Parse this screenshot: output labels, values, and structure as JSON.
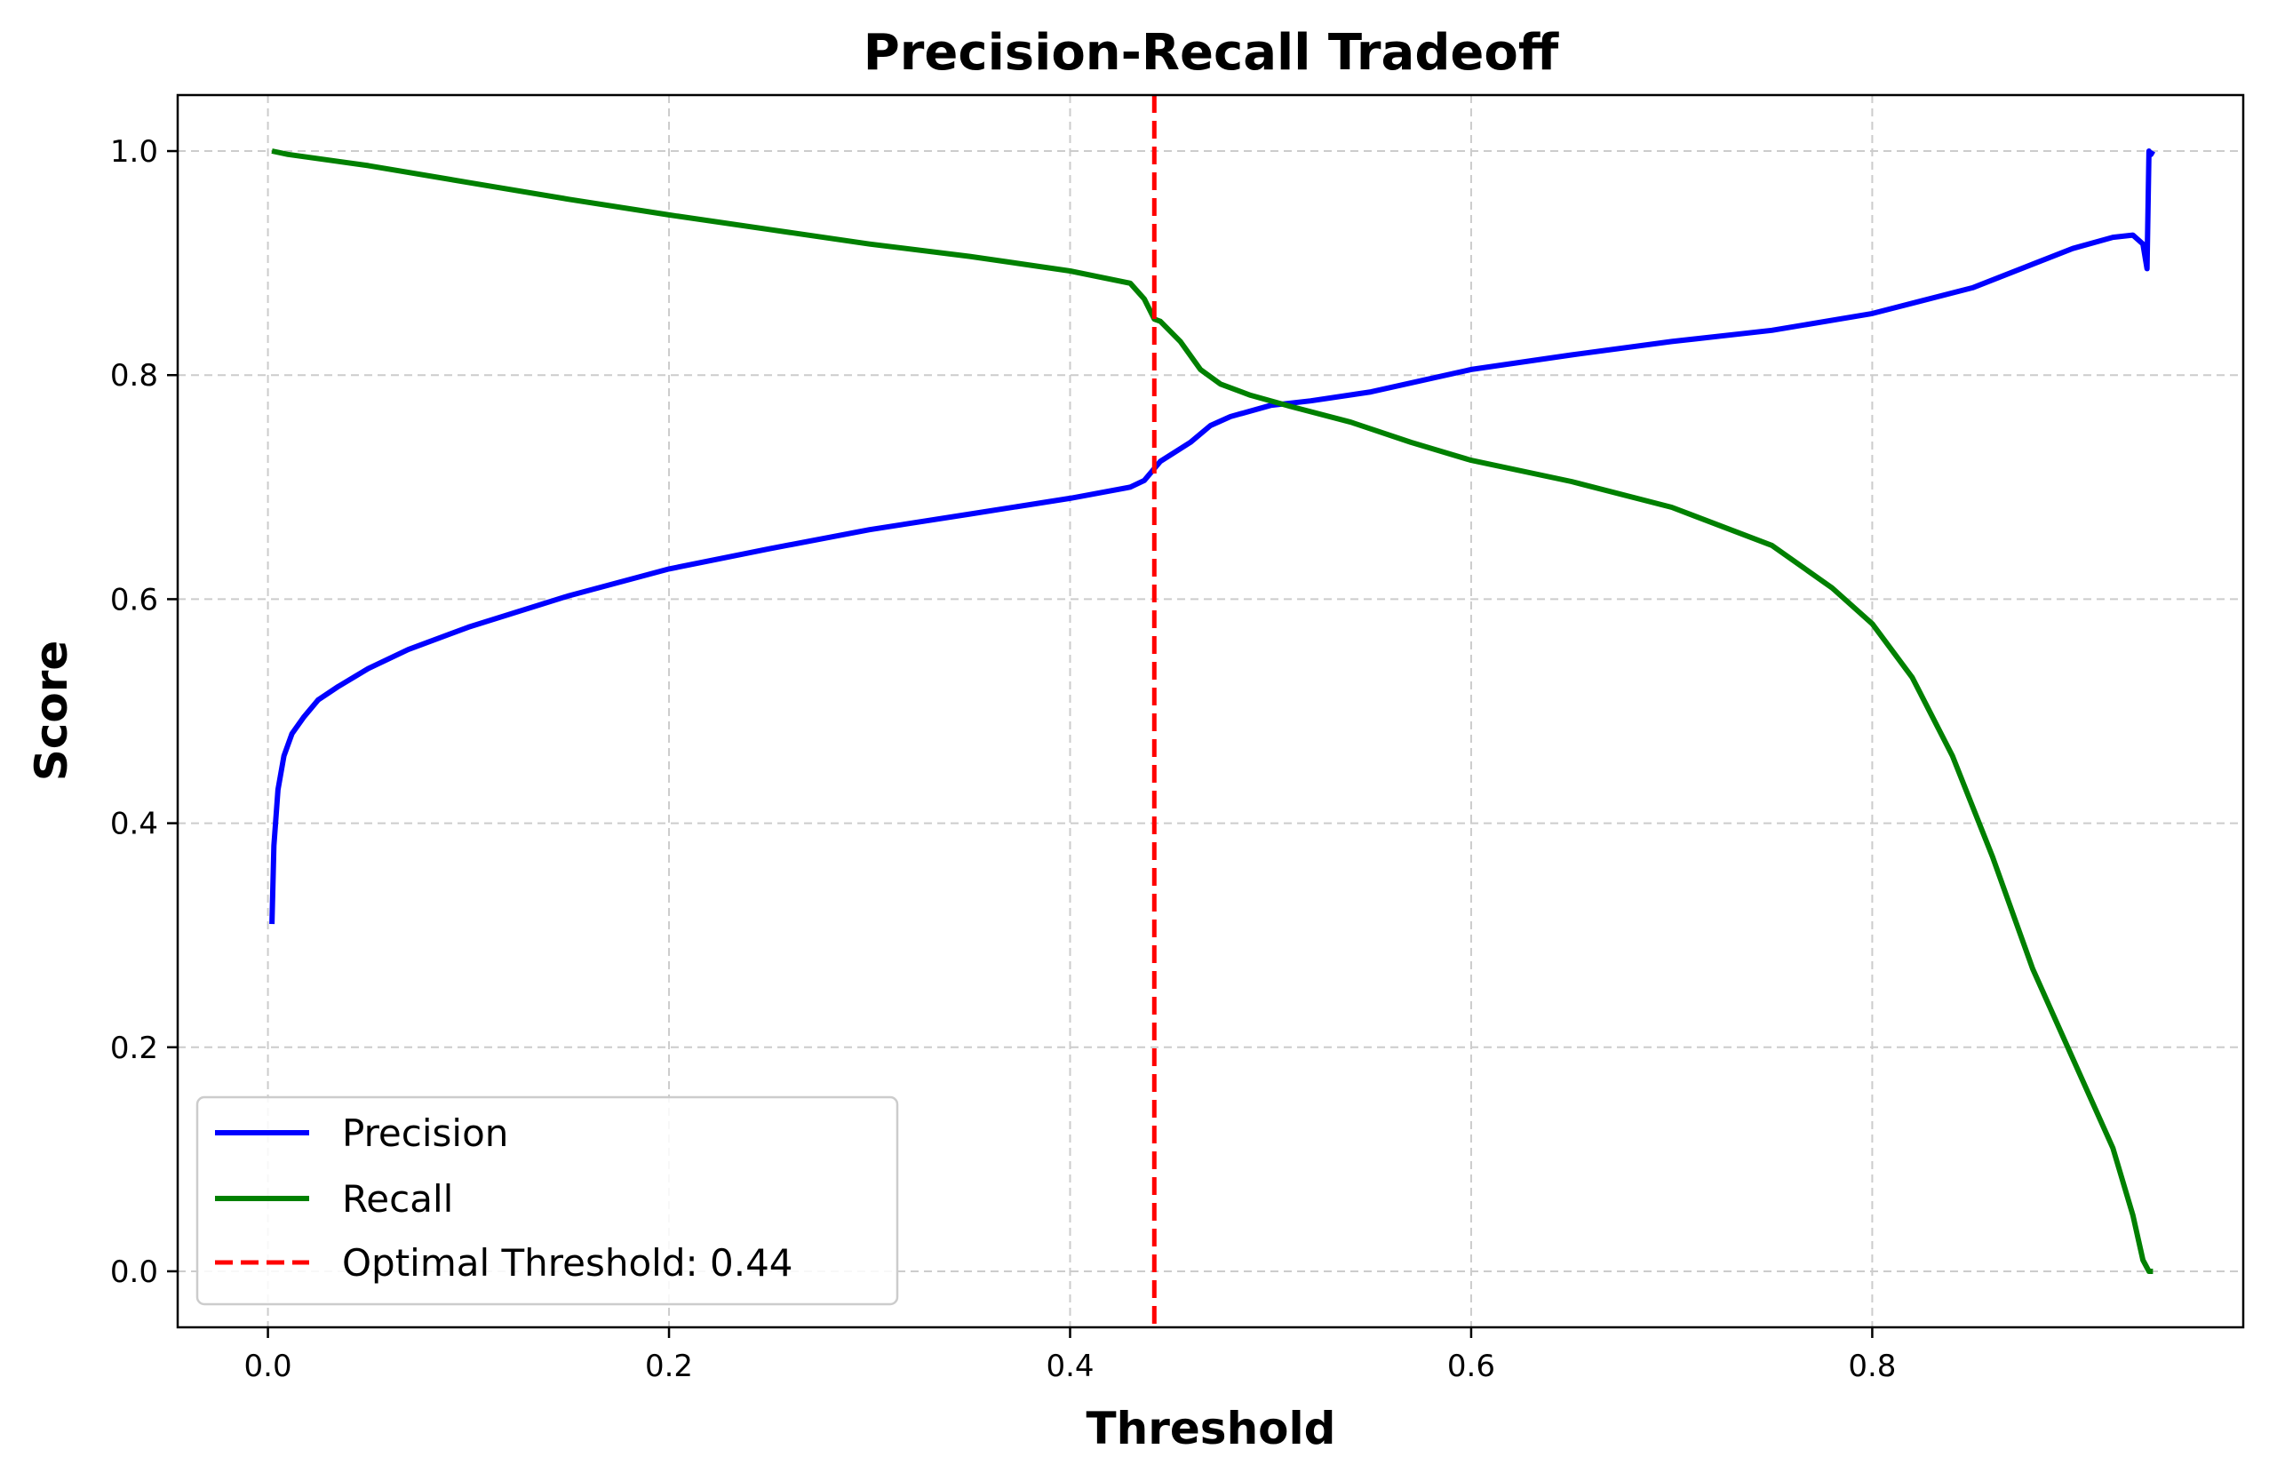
{
  "chart_data": {
    "type": "line",
    "title": "Precision-Recall Tradeoff",
    "xlabel": "Threshold",
    "ylabel": "Score",
    "xlim": [
      -0.045,
      0.985
    ],
    "ylim": [
      -0.05,
      1.05
    ],
    "xticks": [
      0.0,
      0.2,
      0.4,
      0.6,
      0.8
    ],
    "yticks": [
      0.0,
      0.2,
      0.4,
      0.6,
      0.8,
      1.0
    ],
    "xtick_labels": [
      "0.0",
      "0.2",
      "0.4",
      "0.6",
      "0.8"
    ],
    "ytick_labels": [
      "0.0",
      "0.2",
      "0.4",
      "0.6",
      "0.8",
      "1.0"
    ],
    "grid": true,
    "legend_position": "lower-left",
    "series": [
      {
        "name": "Precision",
        "color": "#0000ff",
        "style": "solid",
        "x": [
          0.002,
          0.003,
          0.005,
          0.008,
          0.012,
          0.018,
          0.025,
          0.035,
          0.05,
          0.07,
          0.1,
          0.15,
          0.2,
          0.25,
          0.3,
          0.35,
          0.4,
          0.43,
          0.437,
          0.445,
          0.46,
          0.47,
          0.48,
          0.5,
          0.52,
          0.55,
          0.6,
          0.65,
          0.7,
          0.75,
          0.8,
          0.85,
          0.9,
          0.92,
          0.93,
          0.935,
          0.937,
          0.938,
          0.939,
          0.94
        ],
        "values": [
          0.31,
          0.38,
          0.43,
          0.46,
          0.48,
          0.495,
          0.51,
          0.522,
          0.538,
          0.555,
          0.575,
          0.603,
          0.627,
          0.645,
          0.662,
          0.676,
          0.69,
          0.7,
          0.706,
          0.723,
          0.74,
          0.755,
          0.763,
          0.773,
          0.777,
          0.785,
          0.805,
          0.818,
          0.83,
          0.84,
          0.855,
          0.878,
          0.913,
          0.923,
          0.925,
          0.917,
          0.895,
          1.0,
          0.997,
          1.0
        ]
      },
      {
        "name": "Recall",
        "color": "#008000",
        "style": "solid",
        "x": [
          0.002,
          0.01,
          0.05,
          0.1,
          0.15,
          0.2,
          0.25,
          0.3,
          0.35,
          0.4,
          0.43,
          0.437,
          0.442,
          0.445,
          0.455,
          0.465,
          0.475,
          0.49,
          0.51,
          0.54,
          0.57,
          0.6,
          0.65,
          0.7,
          0.75,
          0.78,
          0.8,
          0.82,
          0.84,
          0.86,
          0.87,
          0.88,
          0.9,
          0.92,
          0.93,
          0.935,
          0.938,
          0.94
        ],
        "values": [
          1.0,
          0.997,
          0.987,
          0.972,
          0.957,
          0.943,
          0.93,
          0.917,
          0.906,
          0.893,
          0.882,
          0.868,
          0.85,
          0.848,
          0.83,
          0.805,
          0.792,
          0.782,
          0.772,
          0.758,
          0.74,
          0.724,
          0.705,
          0.682,
          0.648,
          0.61,
          0.578,
          0.53,
          0.46,
          0.37,
          0.32,
          0.27,
          0.19,
          0.11,
          0.05,
          0.01,
          0.0,
          0.0
        ]
      }
    ],
    "threshold_line": {
      "label": "Optimal Threshold: 0.44",
      "value": 0.442,
      "color": "#ff0000",
      "style": "dashed"
    }
  }
}
